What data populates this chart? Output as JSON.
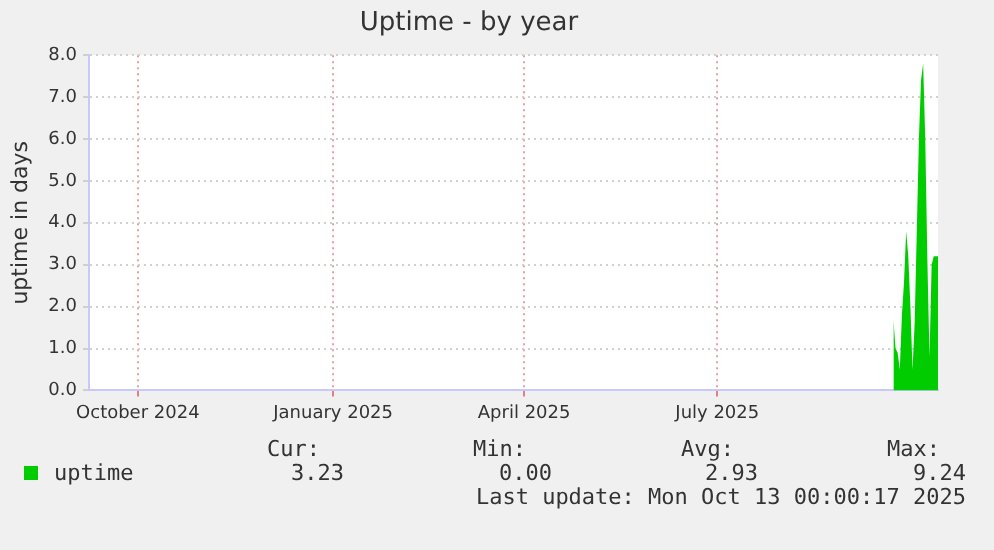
{
  "chart_data": {
    "type": "area",
    "title": "Uptime - by year",
    "ylabel": "uptime in days",
    "x": [
      "2025-09-22",
      "2025-09-23",
      "2025-09-24",
      "2025-09-25",
      "2025-09-26",
      "2025-09-27",
      "2025-09-28",
      "2025-09-29",
      "2025-09-30",
      "2025-10-01",
      "2025-10-02",
      "2025-10-03",
      "2025-10-04",
      "2025-10-05",
      "2025-10-06",
      "2025-10-07",
      "2025-10-08",
      "2025-10-09",
      "2025-10-10",
      "2025-10-11",
      "2025-10-12",
      "2025-10-13"
    ],
    "series": [
      {
        "name": "uptime",
        "color": "#00cc00",
        "values": [
          1.7,
          1.0,
          0.9,
          0.5,
          1.8,
          2.6,
          3.8,
          3.2,
          2.0,
          0.5,
          1.6,
          3.8,
          6.0,
          7.4,
          7.8,
          6.0,
          3.1,
          0.8,
          3.0,
          3.2,
          3.2,
          3.2
        ]
      }
    ],
    "xlim": [
      "2024-09-08",
      "2025-10-13"
    ],
    "xticks": [
      {
        "value": "2024-10-01",
        "label": "October 2024"
      },
      {
        "value": "2025-01-01",
        "label": "January 2025"
      },
      {
        "value": "2025-04-01",
        "label": "April 2025"
      },
      {
        "value": "2025-07-01",
        "label": "July 2025"
      }
    ],
    "ylim": [
      0,
      8
    ],
    "yticks": [
      {
        "value": 0,
        "label": "0.0"
      },
      {
        "value": 1,
        "label": "1.0"
      },
      {
        "value": 2,
        "label": "2.0"
      },
      {
        "value": 3,
        "label": "3.0"
      },
      {
        "value": 4,
        "label": "4.0"
      },
      {
        "value": 5,
        "label": "5.0"
      },
      {
        "value": 6,
        "label": "6.0"
      },
      {
        "value": 7,
        "label": "7.0"
      },
      {
        "value": 8,
        "label": "8.0"
      }
    ],
    "grid": true,
    "line_style": "dotted",
    "marker": "none",
    "legend": "bottom left",
    "annotations": [
      "Cur:",
      "Min:",
      "Avg:",
      "Max:",
      "3.23",
      "0.00",
      "2.93",
      "9.24",
      "Last update: Mon Oct 13 00:00:17 2025"
    ]
  }
}
